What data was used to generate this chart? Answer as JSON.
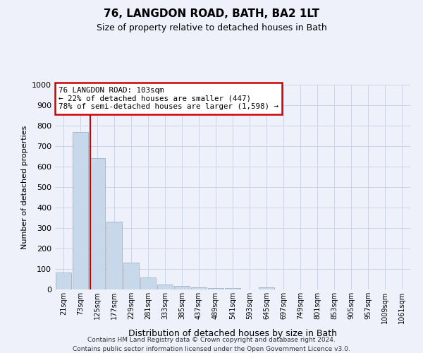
{
  "title": "76, LANGDON ROAD, BATH, BA2 1LT",
  "subtitle": "Size of property relative to detached houses in Bath",
  "xlabel": "Distribution of detached houses by size in Bath",
  "ylabel": "Number of detached properties",
  "bin_labels": [
    "21sqm",
    "73sqm",
    "125sqm",
    "177sqm",
    "229sqm",
    "281sqm",
    "333sqm",
    "385sqm",
    "437sqm",
    "489sqm",
    "541sqm",
    "593sqm",
    "645sqm",
    "697sqm",
    "749sqm",
    "801sqm",
    "853sqm",
    "905sqm",
    "957sqm",
    "1009sqm",
    "1061sqm"
  ],
  "bar_values": [
    82,
    770,
    640,
    330,
    130,
    58,
    25,
    18,
    12,
    8,
    7,
    0,
    10,
    0,
    0,
    0,
    0,
    0,
    0,
    0,
    0
  ],
  "bar_color": "#c8d8eb",
  "bar_edge_color": "#9ab4cc",
  "bg_color": "#eef1fa",
  "grid_color": "#cdd4e8",
  "vline_color": "#cc0000",
  "vline_x": 1.57,
  "annotation_text": "76 LANGDON ROAD: 103sqm\n← 22% of detached houses are smaller (447)\n78% of semi-detached houses are larger (1,598) →",
  "annotation_box_color": "#ffffff",
  "annotation_border_color": "#cc0000",
  "ylim": [
    0,
    1000
  ],
  "yticks": [
    0,
    100,
    200,
    300,
    400,
    500,
    600,
    700,
    800,
    900,
    1000
  ],
  "footer_line1": "Contains HM Land Registry data © Crown copyright and database right 2024.",
  "footer_line2": "Contains public sector information licensed under the Open Government Licence v3.0."
}
